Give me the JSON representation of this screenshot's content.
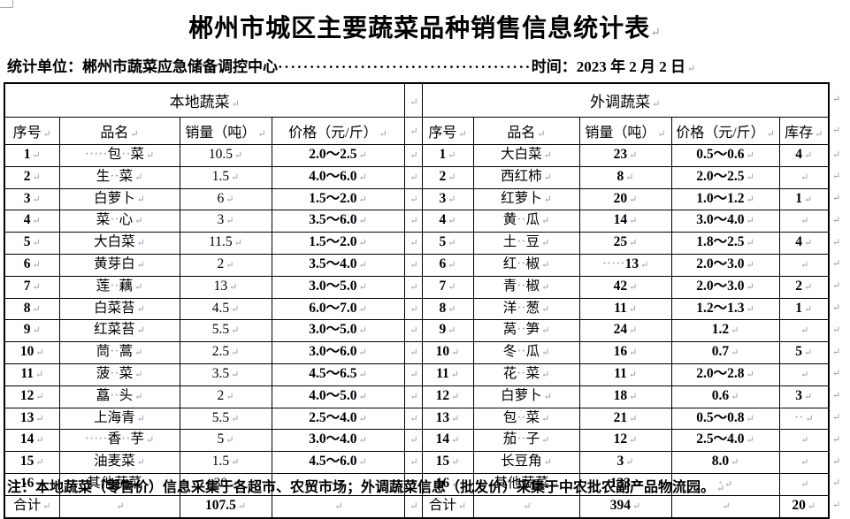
{
  "page": {
    "background": "#ffffff",
    "text_color": "#000000",
    "border_color": "#000000",
    "mark_color": "#8f9bb3"
  },
  "marks": {
    "pilcrow": "↵",
    "space_dot": "·"
  },
  "title": "郴州市城区主要蔬菜品种销售信息统计表",
  "meta": {
    "unit_label": "统计单位：郴州市蔬菜应急储备调控中心",
    "leader_dots": "········································",
    "time_label": "时间：2023 年 2 月 2 日"
  },
  "table": {
    "local": {
      "group_header": "本地蔬菜",
      "columns": [
        "序号",
        "品名",
        "销量（吨）",
        "价格（元/斤）"
      ],
      "rows": [
        [
          "1",
          "·····包··菜",
          "10.5",
          "2.0～2.5"
        ],
        [
          "2",
          "生··菜",
          "1.5",
          "4.0～6.0"
        ],
        [
          "3",
          "白萝卜",
          "6",
          "1.5～2.0"
        ],
        [
          "4",
          "菜··心",
          "3",
          "3.5～6.0"
        ],
        [
          "5",
          "大白菜",
          "11.5",
          "1.5～2.0"
        ],
        [
          "6",
          "黄芽白",
          "2",
          "3.5～4.0"
        ],
        [
          "7",
          "莲··藕",
          "13",
          "3.0～5.0"
        ],
        [
          "8",
          "白菜苔",
          "4.5",
          "6.0～7.0"
        ],
        [
          "9",
          "红菜苔",
          "5.5",
          "3.0～5.0"
        ],
        [
          "10",
          "茼··蒿",
          "2.5",
          "3.0～6.0"
        ],
        [
          "11",
          "菠··菜",
          "3.5",
          "4.5～6.5"
        ],
        [
          "12",
          "藠··头",
          "2",
          "4.0～5.0"
        ],
        [
          "13",
          "上海青",
          "5.5",
          "2.5～4.0"
        ],
        [
          "14",
          "·····香··芋",
          "5",
          "3.0～4.0"
        ],
        [
          "15",
          "油麦菜",
          "1.5",
          "4.5～6.0"
        ],
        [
          "16",
          "其他蔬菜",
          "30",
          ""
        ]
      ],
      "total": [
        "合计",
        "",
        "107.5",
        ""
      ]
    },
    "out": {
      "group_header": "外调蔬菜",
      "columns": [
        "序号",
        "品名",
        "销量（吨）",
        "价格（元/斤）",
        "库存"
      ],
      "rows": [
        [
          "1",
          "大白菜",
          "23",
          "0.5～0.6",
          "4"
        ],
        [
          "2",
          "西红柿",
          "8",
          "2.0～2.5",
          ""
        ],
        [
          "3",
          "红萝卜",
          "20",
          "1.0～1.2",
          "1"
        ],
        [
          "4",
          "黄··瓜",
          "14",
          "3.0～4.0",
          ""
        ],
        [
          "5",
          "土··豆",
          "25",
          "1.8～2.5",
          "4"
        ],
        [
          "6",
          "红··椒",
          "·····13",
          "2.0～3.0",
          ""
        ],
        [
          "7",
          "青··椒",
          "42",
          "2.0～3.0",
          "2"
        ],
        [
          "8",
          "洋··葱",
          "11",
          "1.2～1.3",
          "1"
        ],
        [
          "9",
          "莴··笋",
          "24",
          "1.2",
          ""
        ],
        [
          "10",
          "冬··瓜",
          "16",
          "0.7",
          "5"
        ],
        [
          "11",
          "花··菜",
          "11",
          "2.0～2.8",
          ""
        ],
        [
          "12",
          "白萝卜",
          "18",
          "0.6",
          "3"
        ],
        [
          "13",
          "包··菜",
          "21",
          "0.5～0.8",
          "··"
        ],
        [
          "14",
          "茄··子",
          "12",
          "2.5～4.0",
          ""
        ],
        [
          "15",
          "长豆角",
          "3",
          "8.0",
          ""
        ],
        [
          "16",
          "其他蔬菜",
          "133",
          "·",
          ""
        ]
      ],
      "total": [
        "合计",
        "",
        "394",
        "",
        "20"
      ]
    }
  },
  "note": "注：本地蔬菜（零售价）信息采集于各超市、农贸市场；外调蔬菜信息（批发价）采集于中农批农副产品物流园。"
}
